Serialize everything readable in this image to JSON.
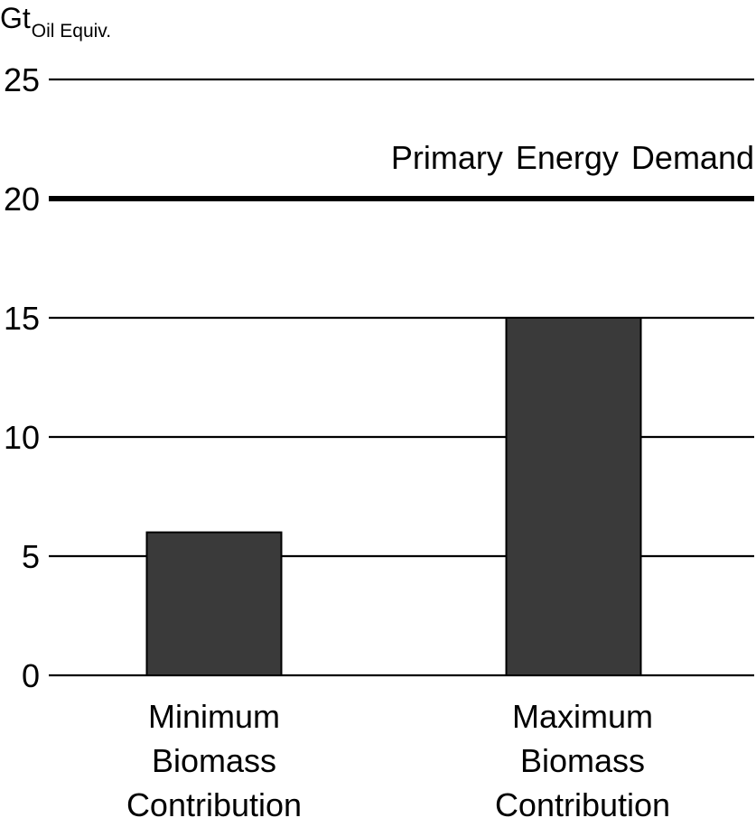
{
  "chart_data": {
    "type": "bar",
    "y_unit_main": "Gt",
    "y_unit_sub": "Oil Equiv.",
    "ylim": [
      0,
      25
    ],
    "yticks": [
      "0",
      "5",
      "10",
      "15",
      "20",
      "25"
    ],
    "grid": true,
    "categories": [
      [
        "Minimum",
        "Biomass",
        "Contribution"
      ],
      [
        "Maximum",
        "Biomass",
        "Contribution"
      ]
    ],
    "values": [
      6,
      15
    ],
    "bar_color": "#3a3a3a",
    "reference_line": {
      "value": 20,
      "label": "Primary Energy Demand"
    }
  }
}
